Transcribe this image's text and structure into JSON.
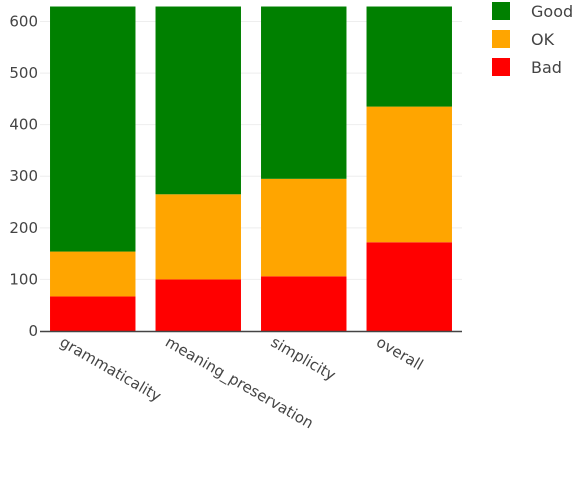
{
  "chart_data": {
    "type": "bar",
    "stacked": true,
    "categories": [
      "grammaticality",
      "meaning_preservation",
      "simplicity",
      "overall"
    ],
    "series": [
      {
        "name": "Bad",
        "color": "#ff0000",
        "values": [
          67,
          100,
          106,
          172
        ]
      },
      {
        "name": "OK",
        "color": "#ffa500",
        "values": [
          87,
          165,
          189,
          263
        ]
      },
      {
        "name": "Good",
        "color": "#008000",
        "values": [
          475,
          364,
          334,
          194
        ]
      }
    ],
    "legend_order": [
      "Good",
      "OK",
      "Bad"
    ],
    "legend_position": "top-right",
    "ylim": [
      0,
      630
    ],
    "yticks": [
      0,
      100,
      200,
      300,
      400,
      500,
      600
    ],
    "grid": true,
    "title": "",
    "xlabel": "",
    "ylabel": ""
  }
}
